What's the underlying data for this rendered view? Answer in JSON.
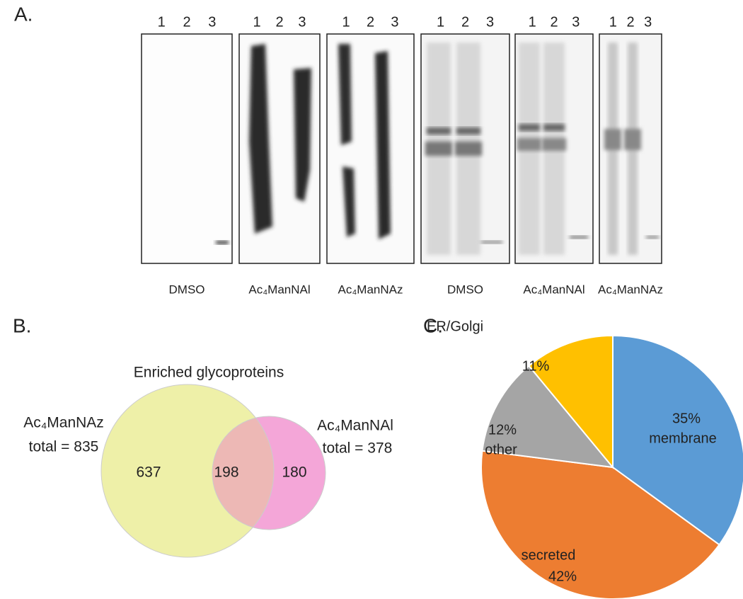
{
  "panel_a": {
    "label": "A.",
    "blots": [
      {
        "lanes": [
          "1",
          "2",
          "3"
        ],
        "caption": "DMSO"
      },
      {
        "lanes": [
          "1",
          "2",
          "3"
        ],
        "caption": "Ac₄ManNAl"
      },
      {
        "lanes": [
          "1",
          "2",
          "3"
        ],
        "caption": "Ac₄ManNAz"
      },
      {
        "lanes": [
          "1",
          "2",
          "3"
        ],
        "caption": "DMSO"
      },
      {
        "lanes": [
          "1",
          "2",
          "3"
        ],
        "caption": "Ac₄ManNAl"
      },
      {
        "lanes": [
          "1",
          "2",
          "3"
        ],
        "caption": "Ac₄ManNAz"
      }
    ]
  },
  "panel_b": {
    "label": "B.",
    "title": "Enriched glycoproteins",
    "sets": [
      {
        "name": "Ac₄ManNAz",
        "total": "total = 835"
      },
      {
        "name": "Ac₄ManNAl",
        "total": "total = 378"
      }
    ],
    "regions": [
      637,
      198,
      180
    ]
  },
  "panel_c": {
    "label": "C."
  },
  "chart_data": {
    "type": "pie",
    "categories": [
      "membrane",
      "secreted",
      "other",
      "ER/Golgi"
    ],
    "values": [
      35,
      42,
      12,
      11
    ],
    "value_labels": [
      "35%",
      "42%",
      "12%",
      "11%"
    ],
    "colors": [
      "#5b9bd5",
      "#ed7d31",
      "#a5a5a5",
      "#ffc000"
    ]
  }
}
